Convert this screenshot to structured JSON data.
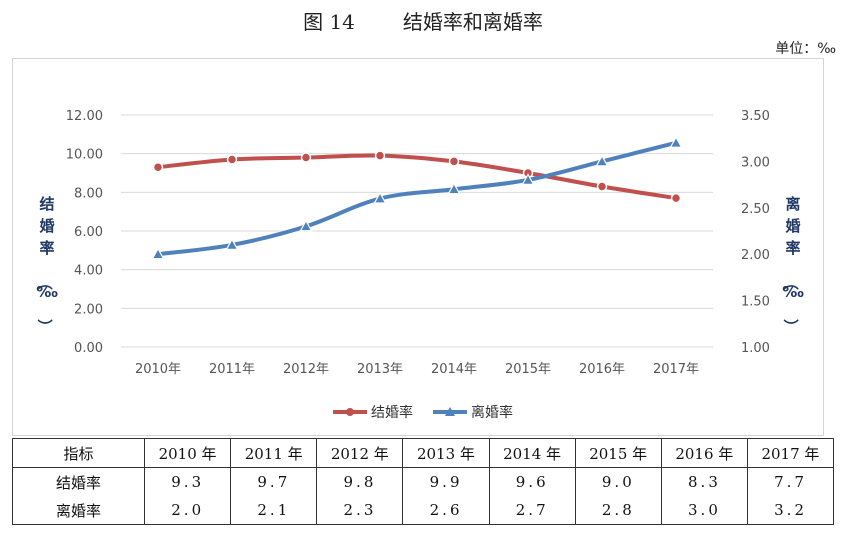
{
  "title": {
    "figure": "图 14",
    "text": "结婚率和离婚率"
  },
  "unit_label": "单位：‰",
  "chart_data": {
    "type": "line",
    "categories": [
      "2010年",
      "2011年",
      "2012年",
      "2013年",
      "2014年",
      "2015年",
      "2016年",
      "2017年"
    ],
    "series": [
      {
        "name": "结婚率",
        "axis": "left",
        "color": "#c0504d",
        "marker": "circle",
        "values": [
          9.3,
          9.7,
          9.8,
          9.9,
          9.6,
          9.0,
          8.3,
          7.7
        ]
      },
      {
        "name": "离婚率",
        "axis": "right",
        "color": "#4f81bd",
        "marker": "triangle",
        "values": [
          2.0,
          2.1,
          2.3,
          2.6,
          2.7,
          2.8,
          3.0,
          3.2
        ]
      }
    ],
    "y_left": {
      "label": "结婚率（‰）",
      "range": [
        0,
        12
      ],
      "ticks": [
        "0.00",
        "2.00",
        "4.00",
        "6.00",
        "8.00",
        "10.00",
        "12.00"
      ]
    },
    "y_right": {
      "label": "离婚率（‰）",
      "range": [
        1,
        3.5
      ],
      "ticks": [
        "1.00",
        "1.50",
        "2.00",
        "2.50",
        "3.00",
        "3.50"
      ]
    },
    "grid": true,
    "legend": "bottom"
  },
  "table": {
    "header": [
      "指标",
      "2010 年",
      "2011 年",
      "2012 年",
      "2013 年",
      "2014 年",
      "2015 年",
      "2016 年",
      "2017 年"
    ],
    "rows": [
      [
        "结婚率",
        "9.3",
        "9.7",
        "9.8",
        "9.9",
        "9.6",
        "9.0",
        "8.3",
        "7.7"
      ],
      [
        "离婚率",
        "2.0",
        "2.1",
        "2.3",
        "2.6",
        "2.7",
        "2.8",
        "3.0",
        "3.2"
      ]
    ]
  }
}
